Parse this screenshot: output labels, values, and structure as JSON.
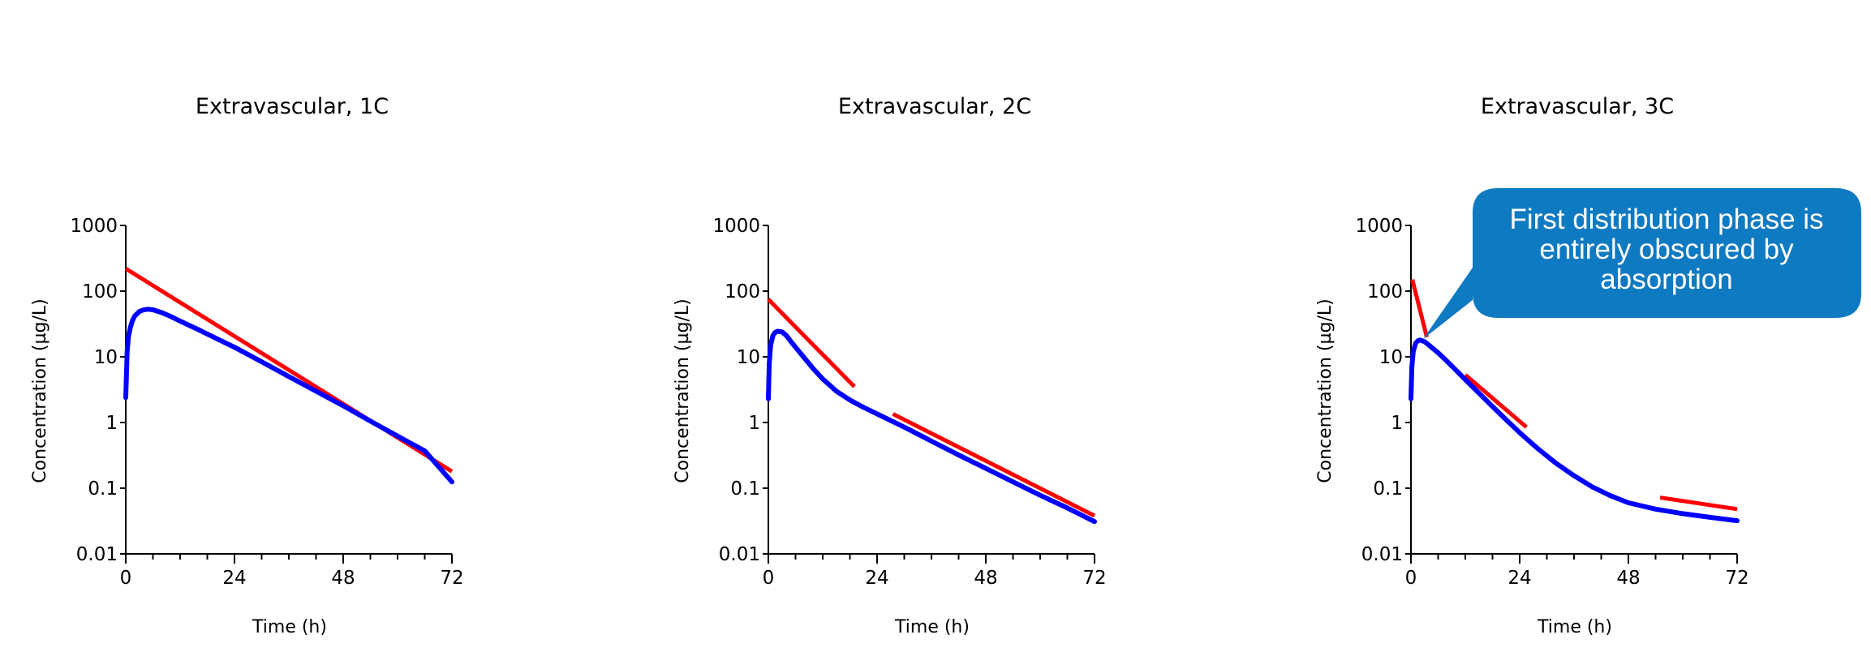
{
  "chart_data": [
    {
      "type": "line",
      "title": "Extravascular, 1C",
      "xlabel": "Time (h)",
      "ylabel": "Concentration (µg/L)",
      "xlim": [
        0,
        72
      ],
      "ylim": [
        0.01,
        1000
      ],
      "yscale": "log",
      "xticks": [
        0,
        24,
        48,
        72
      ],
      "xtick_labels": [
        "0",
        "24",
        "48",
        "72"
      ],
      "yticks": [
        0.01,
        0.1,
        1,
        10,
        100,
        1000
      ],
      "ytick_labels": [
        "0.01",
        "0.1",
        "1",
        "10",
        "100",
        "1000"
      ],
      "grid": false,
      "series": [
        {
          "color": "#0000ff",
          "x": [
            0,
            0.3,
            0.6,
            1,
            1.5,
            2,
            3,
            4,
            5,
            6,
            8,
            10,
            12,
            16,
            20,
            24,
            30,
            36,
            42,
            48,
            54,
            60,
            66,
            72
          ],
          "y": [
            2.4,
            12,
            20,
            28,
            36,
            42,
            49,
            52,
            53,
            52,
            47,
            41,
            35,
            26,
            19,
            14,
            8.4,
            5.0,
            3.0,
            1.8,
            1.05,
            0.62,
            0.37,
            0.125
          ]
        }
      ],
      "annotations": [
        {
          "type": "line",
          "color": "#ff0000",
          "x": [
            0,
            72
          ],
          "y": [
            220,
            0.18
          ]
        }
      ]
    },
    {
      "type": "line",
      "title": "Extravascular, 2C",
      "xlabel": "Time (h)",
      "ylabel": "Concentration (µg/L)",
      "xlim": [
        0,
        72
      ],
      "ylim": [
        0.01,
        1000
      ],
      "yscale": "log",
      "xticks": [
        0,
        24,
        48,
        72
      ],
      "xtick_labels": [
        "0",
        "24",
        "48",
        "72"
      ],
      "yticks": [
        0.01,
        0.1,
        1,
        10,
        100,
        1000
      ],
      "ytick_labels": [
        "0.01",
        "0.1",
        "1",
        "10",
        "100",
        "1000"
      ],
      "grid": false,
      "series": [
        {
          "color": "#0000ff",
          "x": [
            0,
            0.2,
            0.5,
            1,
            1.5,
            2,
            3,
            4,
            5,
            6,
            8,
            10,
            12,
            15,
            18,
            21,
            24,
            30,
            36,
            42,
            48,
            54,
            60,
            66,
            72
          ],
          "y": [
            2.3,
            8,
            15,
            21,
            23.5,
            24.5,
            24,
            21,
            17,
            14,
            9.5,
            6.5,
            4.6,
            3.0,
            2.2,
            1.7,
            1.35,
            0.85,
            0.52,
            0.32,
            0.2,
            0.125,
            0.078,
            0.05,
            0.031
          ]
        }
      ],
      "annotations": [
        {
          "type": "line",
          "color": "#ff0000",
          "x": [
            0,
            19
          ],
          "y": [
            75,
            3.5
          ]
        },
        {
          "type": "line",
          "color": "#ff0000",
          "x": [
            27.5,
            72
          ],
          "y": [
            1.35,
            0.038
          ]
        }
      ]
    },
    {
      "type": "line",
      "title": "Extravascular, 3C",
      "xlabel": "Time (h)",
      "ylabel": "Concentration (µg/L)",
      "xlim": [
        0,
        72
      ],
      "ylim": [
        0.01,
        1000
      ],
      "yscale": "log",
      "xticks": [
        0,
        24,
        48,
        72
      ],
      "xtick_labels": [
        "0",
        "24",
        "48",
        "72"
      ],
      "yticks": [
        0.01,
        0.1,
        1,
        10,
        100,
        1000
      ],
      "ytick_labels": [
        "0.01",
        "0.1",
        "1",
        "10",
        "100",
        "1000"
      ],
      "grid": false,
      "series": [
        {
          "color": "#0000ff",
          "x": [
            0,
            0.2,
            0.5,
            1,
            1.5,
            2,
            3,
            4,
            6,
            8,
            10,
            12,
            15,
            18,
            21,
            24,
            28,
            32,
            36,
            40,
            44,
            48,
            54,
            60,
            66,
            72
          ],
          "y": [
            2.3,
            7,
            12,
            16,
            17.5,
            18,
            17,
            15,
            11.5,
            8.5,
            6.2,
            4.5,
            2.8,
            1.75,
            1.1,
            0.7,
            0.4,
            0.24,
            0.155,
            0.105,
            0.077,
            0.06,
            0.048,
            0.041,
            0.036,
            0.032
          ]
        }
      ],
      "annotations": [
        {
          "type": "line",
          "color": "#ff0000",
          "x": [
            0.3,
            3.5
          ],
          "y": [
            150,
            20
          ]
        },
        {
          "type": "line",
          "color": "#ff0000",
          "x": [
            12,
            25.5
          ],
          "y": [
            5.3,
            0.85
          ]
        },
        {
          "type": "line",
          "color": "#ff0000",
          "x": [
            55,
            72
          ],
          "y": [
            0.072,
            0.048
          ]
        }
      ],
      "callout": {
        "text": "First distribution phase is entirely obscured by absorption",
        "color": "#0e7ac2",
        "text_color": "#ffffff"
      }
    }
  ]
}
